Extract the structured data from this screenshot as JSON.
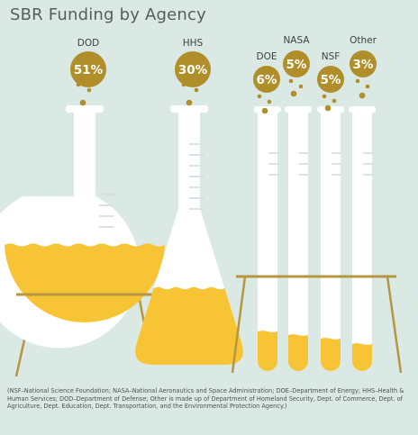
{
  "title": "SBR Funding by Agency",
  "chart_data": {
    "type": "pie",
    "title": "SBR Funding by Agency",
    "unit": "%",
    "categories": [
      "DOD",
      "HHS",
      "DOE",
      "NASA",
      "NSF",
      "Other"
    ],
    "values": [
      51,
      30,
      6,
      5,
      5,
      3
    ],
    "value_labels": [
      "51%",
      "30%",
      "6%",
      "5%",
      "5%",
      "3%"
    ],
    "colors": {
      "background": "#dbe9e4",
      "bubble": "#b08f2a",
      "liquid": "#f7c435",
      "glass": "#ffffff",
      "stand": "#b69640"
    }
  },
  "footnote": "(NSF–National Science Foundation; NASA–National Aeronautics and Space Administration; DOE–Department of Energy; HHS–Health & Human Services; DOD–Department of Defense; Other is made up of Department of Homeland Security, Dept. of Commerce, Dept. of Agriculture, Dept. Education, Dept. Transportation, and the Environmental Protection Agency.)"
}
